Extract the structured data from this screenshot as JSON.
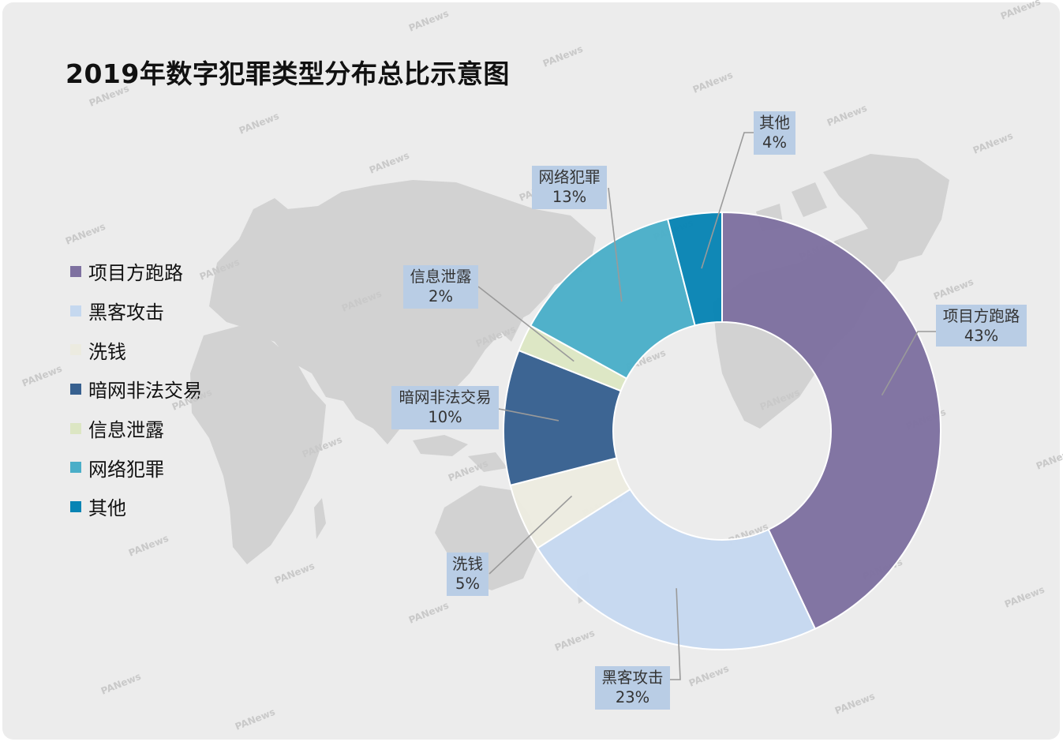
{
  "chart_data": {
    "type": "pie",
    "subtype": "donut",
    "title": "2019年数字犯罪类型分布总比示意图",
    "categories": [
      "项目方跑路",
      "黑客攻击",
      "洗钱",
      "暗网非法交易",
      "信息泄露",
      "网络犯罪",
      "其他"
    ],
    "values": [
      43,
      23,
      5,
      10,
      2,
      13,
      4
    ],
    "value_labels": [
      "43%",
      "23%",
      "5%",
      "10%",
      "2%",
      "13%",
      "4%"
    ],
    "colors": [
      "#7e71a0",
      "#c5d8ef",
      "#ecebe0",
      "#37608f",
      "#dce6c3",
      "#4aaec8",
      "#0884b4"
    ],
    "legend_position": "left",
    "start_angle_deg": 0,
    "direction": "clockwise"
  },
  "watermark": {
    "text": "PANews",
    "icon": "panews-logo-icon"
  },
  "background": {
    "map": "world-map-silhouette",
    "card_color": "#ececec",
    "map_color": "#d2d2d2"
  }
}
